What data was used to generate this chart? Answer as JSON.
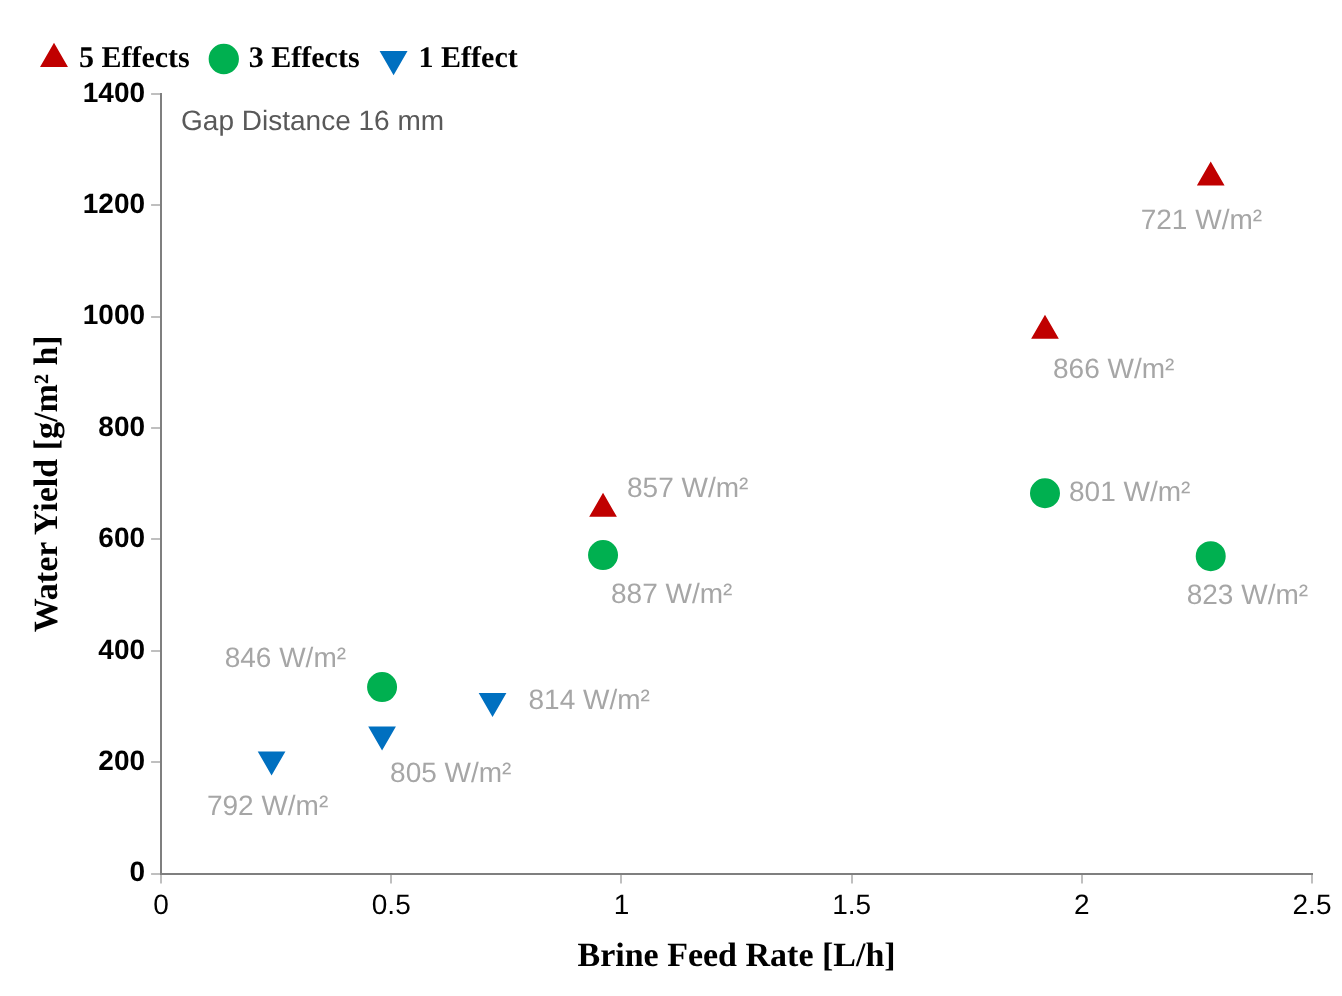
{
  "chart_data": {
    "type": "scatter",
    "xlabel": "Brine Feed Rate [L/h]",
    "ylabel": "Water Yield [g/m² h]",
    "xlim": [
      0,
      2.5
    ],
    "xticks": [
      0,
      0.5,
      1,
      1.5,
      2,
      2.5
    ],
    "ylim": [
      0,
      1400
    ],
    "yticks": [
      0,
      200,
      400,
      600,
      800,
      1000,
      1200,
      1400
    ],
    "grid": false,
    "legend": "top left",
    "series": [
      {
        "name": "5 Effects",
        "color": "#c00000",
        "marker": "triangle",
        "x": [
          0.96,
          1.92,
          2.28
        ],
        "values": [
          655,
          975,
          1250
        ]
      },
      {
        "name": "3 Effects",
        "color": "#00b050",
        "marker": "circle",
        "x": [
          0.48,
          0.96,
          1.92,
          2.28
        ],
        "values": [
          335,
          572,
          683,
          570
        ]
      },
      {
        "name": "1 Effect",
        "color": "#0070c0",
        "marker": "triangle-down",
        "x": [
          0.24,
          0.48,
          0.72
        ],
        "values": [
          205,
          250,
          310
        ]
      }
    ],
    "annotations": [
      "Gap Distance 16 mm",
      {
        "text": "721 W/m²",
        "x": 2.28,
        "y": 1250
      },
      {
        "text": "866 W/m²",
        "x": 1.92,
        "y": 975
      },
      {
        "text": "857 W/m²",
        "x": 0.96,
        "y": 655
      },
      {
        "text": "887 W/m²",
        "x": 0.96,
        "y": 572
      },
      {
        "text": "801 W/m²",
        "x": 1.92,
        "y": 683
      },
      {
        "text": "823 W/m²",
        "x": 2.28,
        "y": 570
      },
      {
        "text": "846 W/m²",
        "x": 0.48,
        "y": 335
      },
      {
        "text": "805 W/m²",
        "x": 0.48,
        "y": 250
      },
      {
        "text": "814 W/m²",
        "x": 0.72,
        "y": 310
      },
      {
        "text": "792 W/m²",
        "x": 0.24,
        "y": 205
      }
    ]
  }
}
